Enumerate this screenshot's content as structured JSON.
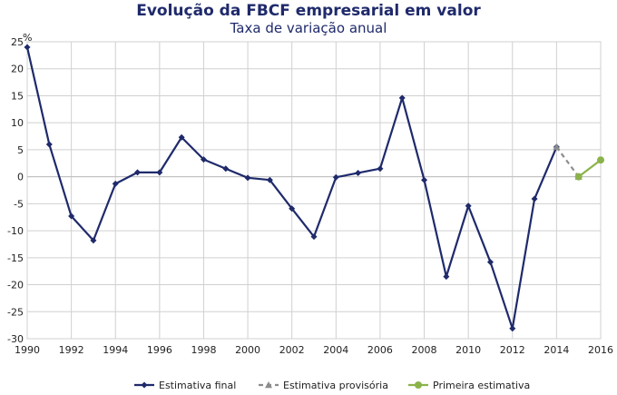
{
  "chart_data": {
    "type": "line",
    "title": "Evolução da FBCF empresarial em valor",
    "subtitle": "Taxa de variação anual",
    "ylabel": "%",
    "xlim": [
      1990,
      2016
    ],
    "ylim": [
      -30,
      25
    ],
    "xticks": [
      "1990",
      "1992",
      "1994",
      "1996",
      "1998",
      "2000",
      "2002",
      "2004",
      "2006",
      "2008",
      "2010",
      "2012",
      "2014",
      "2016"
    ],
    "yticks": [
      "25",
      "20",
      "15",
      "10",
      "5",
      "0",
      "-5",
      "-10",
      "-15",
      "-20",
      "-25",
      "-30"
    ],
    "grid": true,
    "legend_position": "bottom",
    "series": [
      {
        "name": "Estimativa final",
        "color": "#1f2a6b",
        "style": "solid",
        "marker": "diamond",
        "x": [
          1990,
          1991,
          1992,
          1993,
          1994,
          1995,
          1996,
          1997,
          1998,
          1999,
          2000,
          2001,
          2002,
          2003,
          2004,
          2005,
          2006,
          2007,
          2008,
          2009,
          2010,
          2011,
          2012,
          2013,
          2014
        ],
        "y": [
          24,
          6,
          -7.3,
          -11.8,
          -1.3,
          0.8,
          0.8,
          7.3,
          3.2,
          1.5,
          -0.2,
          -0.6,
          -5.9,
          -11.1,
          -0.1,
          0.7,
          1.5,
          14.6,
          -0.6,
          -18.5,
          -5.4,
          -15.8,
          -28.1,
          -4.1,
          5.5
        ]
      },
      {
        "name": "Estimativa provisória",
        "color": "#8c8c8c",
        "style": "dashed",
        "marker": "triangle",
        "x": [
          2014,
          2015
        ],
        "y": [
          5.5,
          0
        ]
      },
      {
        "name": "Primeira estimativa",
        "color": "#8ab34a",
        "style": "solid",
        "marker": "circle",
        "x": [
          2015,
          2016
        ],
        "y": [
          0,
          3.1
        ]
      }
    ]
  }
}
